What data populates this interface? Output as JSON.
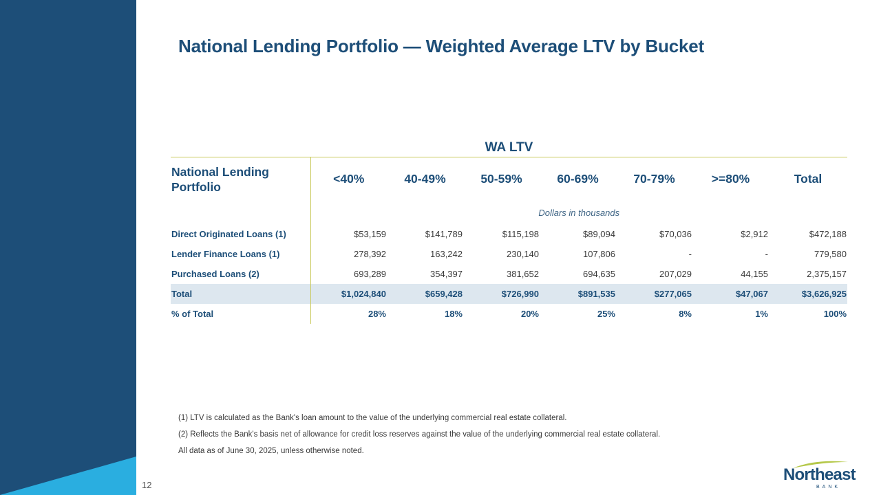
{
  "brand": {
    "navy": "#1d4e78",
    "sky": "#2aaee0",
    "accent_line": "#c9c95b",
    "total_row_bg": "#dde7ef"
  },
  "slide": {
    "title": "National Lending Portfolio — Weighted Average LTV by Bucket",
    "page_number": "12"
  },
  "table": {
    "group_header": "WA LTV",
    "first_column_header": "National Lending Portfolio",
    "columns": [
      "<40%",
      "40-49%",
      "50-59%",
      "60-69%",
      "70-79%",
      ">=80%",
      "Total"
    ],
    "units_note": "Dollars in thousands",
    "rows": [
      {
        "label": "Direct Originated Loans (1)",
        "values": [
          "$53,159",
          "$141,789",
          "$115,198",
          "$89,094",
          "$70,036",
          "$2,912",
          "$472,188"
        ]
      },
      {
        "label": "Lender Finance Loans (1)",
        "values": [
          "278,392",
          "163,242",
          "230,140",
          "107,806",
          "-",
          "-",
          "779,580"
        ]
      },
      {
        "label": "Purchased Loans (2)",
        "values": [
          "693,289",
          "354,397",
          "381,652",
          "694,635",
          "207,029",
          "44,155",
          "2,375,157"
        ]
      },
      {
        "label": "Total",
        "values": [
          "$1,024,840",
          "$659,428",
          "$726,990",
          "$891,535",
          "$277,065",
          "$47,067",
          "$3,626,925"
        ]
      },
      {
        "label": "% of Total",
        "values": [
          "28%",
          "18%",
          "20%",
          "25%",
          "8%",
          "1%",
          "100%"
        ]
      }
    ]
  },
  "footnotes": [
    "(1) LTV is calculated as the Bank's loan amount to the value of the underlying commercial real estate collateral.",
    "(2) Reflects the Bank's basis net of allowance for credit loss reserves against the value of the underlying commercial real estate collateral.",
    "All data as of June 30, 2025, unless otherwise noted."
  ],
  "logo": {
    "name": "Northeast",
    "sub": "BANK"
  }
}
